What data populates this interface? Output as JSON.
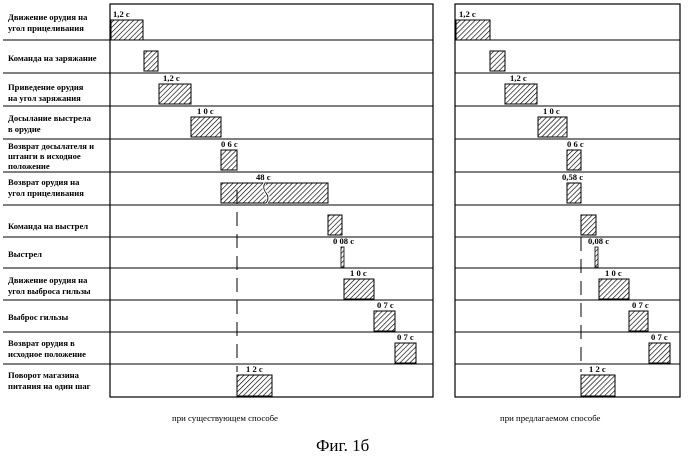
{
  "rows": [
    {
      "label": [
        "Движение орудия на",
        "угол прицеливания"
      ]
    },
    {
      "label": [
        "Команда на заряжание"
      ]
    },
    {
      "label": [
        "Приведение орудия",
        "на угол заряжания"
      ]
    },
    {
      "label": [
        "Досылание выстрела",
        "в орудие"
      ]
    },
    {
      "label": [
        "Возврат досылателя и",
        "штанги в исходное",
        "положение"
      ]
    },
    {
      "label": [
        "Возврат орудия на",
        "угол прицеливания"
      ]
    },
    {
      "label": [
        "Команда на выстрел"
      ]
    },
    {
      "label": [
        "Выстрел"
      ]
    },
    {
      "label": [
        "Движение орудия на",
        "угол выброса гильзы"
      ]
    },
    {
      "label": [
        "Выброс гильзы"
      ]
    },
    {
      "label": [
        "Возврат орудия в",
        "исходное положение"
      ]
    },
    {
      "label": [
        "Поворот магазина",
        "питания на один шаг"
      ]
    }
  ],
  "panels": [
    {
      "caption": "при существующем способе",
      "durations": [
        "1,2 с",
        "",
        "1,2 с",
        "1 0 с",
        "0 6 с",
        "48 с",
        "",
        "0 08 с",
        "1 0 с",
        "0 7 с",
        "0 7 с",
        "1 2 с"
      ]
    },
    {
      "caption": "при предлагаемом способе",
      "durations": [
        "1,2 с",
        "",
        "1,2 с",
        "1 0 с",
        "0 6 с",
        "0,58 с",
        "",
        "0,08 с",
        "1 0 с",
        "0 7 с",
        "0 7 с",
        "1 2 с"
      ]
    }
  ],
  "figure_caption": "Фиг. 1б"
}
